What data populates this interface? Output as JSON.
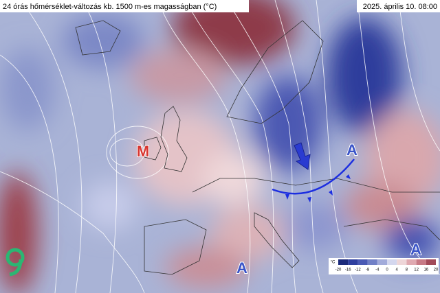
{
  "header": {
    "title": "24 órás hőmérséklet-változás kb. 1500 m-es magasságban (°C)",
    "date": "2025. április 10. 08:00"
  },
  "pressure_centers": [
    {
      "label": "M"
    },
    {
      "label": "A"
    },
    {
      "label": "A"
    },
    {
      "label": "A"
    }
  ],
  "colorbar": {
    "unit": "°C",
    "ticks": [
      -20,
      -16,
      -12,
      -8,
      -4,
      0,
      4,
      8,
      12,
      16,
      20
    ]
  }
}
